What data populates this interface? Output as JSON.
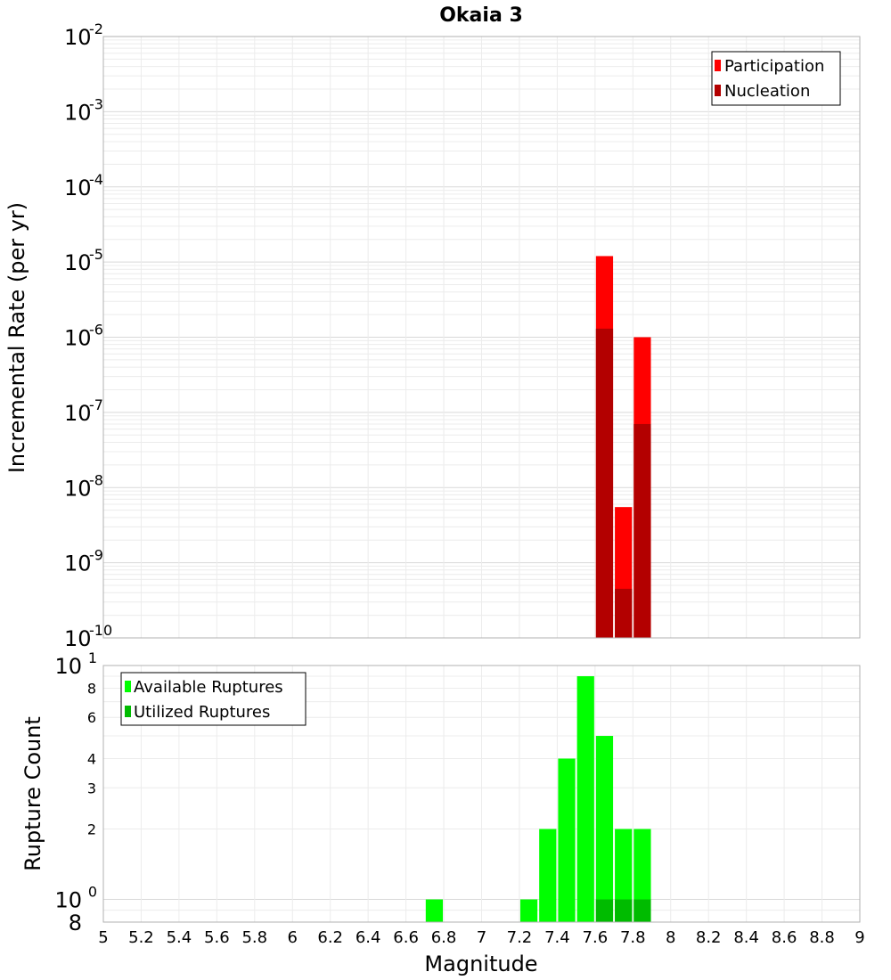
{
  "chart_data": [
    {
      "type": "bar",
      "title": "Okaia 3",
      "xlabel": "",
      "ylabel": "Incremental Rate (per yr)",
      "yscale": "log",
      "ylim": [
        1e-10,
        0.01
      ],
      "xlim": [
        5,
        9
      ],
      "ytick_exponents": [
        "-2",
        "-3",
        "-4",
        "-5",
        "-6",
        "-7",
        "-8",
        "-9",
        "-10"
      ],
      "ytick_values": [
        0.01,
        0.001,
        0.0001,
        1e-05,
        1e-06,
        1e-07,
        1e-08,
        1e-09,
        1e-10
      ],
      "grid": true,
      "legend_position": "top-right",
      "x": [
        7.65,
        7.75,
        7.85
      ],
      "bar_width": 0.1,
      "series": [
        {
          "name": "Participation",
          "color": "#ff0000",
          "values": [
            1.2e-05,
            5.5e-09,
            1e-06
          ]
        },
        {
          "name": "Nucleation",
          "color": "#b30000",
          "values": [
            1.3e-06,
            4.5e-10,
            7e-08
          ]
        }
      ]
    },
    {
      "type": "bar",
      "title": "",
      "xlabel": "Magnitude",
      "ylabel": "Rupture Count",
      "yscale": "log",
      "ylim": [
        0.8,
        10
      ],
      "xlim": [
        5,
        9
      ],
      "xtick_labels": [
        "5",
        "5.2",
        "5.4",
        "5.6",
        "5.8",
        "6",
        "6.2",
        "6.4",
        "6.6",
        "6.8",
        "7",
        "7.2",
        "7.4",
        "7.6",
        "7.8",
        "8",
        "8.2",
        "8.4",
        "8.6",
        "8.8",
        "9"
      ],
      "ytick_values": [
        8,
        6,
        4,
        3,
        2
      ],
      "ytick_labels": [
        "8",
        "6",
        "4",
        "3",
        "2"
      ],
      "ymajor_ticks": [
        10,
        1,
        0.8
      ],
      "ymajor_bases": [
        "10",
        "10",
        "8"
      ],
      "ymajor_exponents": [
        "1",
        "0",
        ""
      ],
      "grid": true,
      "legend_position": "top-left",
      "x": [
        6.75,
        7.25,
        7.35,
        7.45,
        7.55,
        7.65,
        7.75,
        7.85
      ],
      "bar_width": 0.1,
      "series": [
        {
          "name": "Available Ruptures",
          "color": "#00ff00",
          "values": [
            1,
            1,
            2,
            4,
            9,
            5,
            2,
            2
          ]
        },
        {
          "name": "Utilized Ruptures",
          "color": "#00bb00",
          "values": [
            0,
            0,
            0,
            0,
            0,
            1,
            1,
            1
          ]
        }
      ]
    }
  ]
}
